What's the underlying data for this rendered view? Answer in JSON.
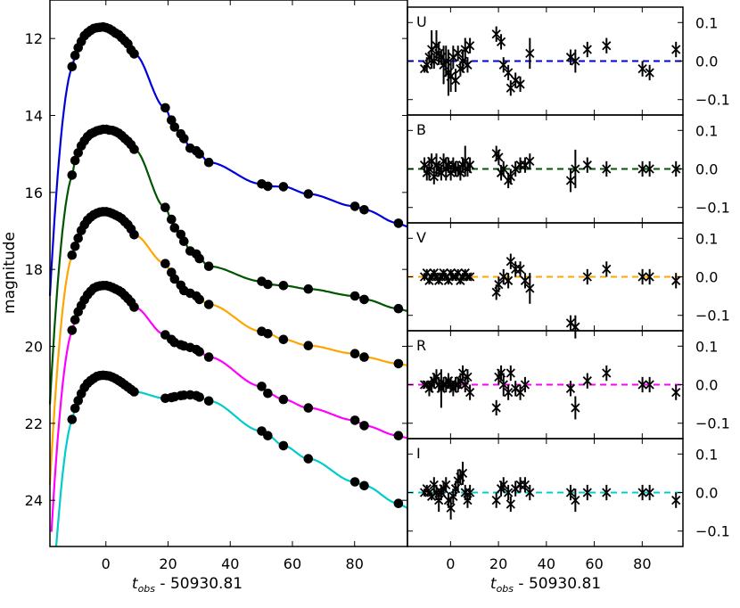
{
  "chart_data": [
    {
      "type": "line",
      "title": "",
      "ylabel": "magnitude",
      "xlabel_main": "t",
      "xlabel_sub": "obs",
      "xlabel_rest": " - 50930.81",
      "xlim": [
        -18,
        97
      ],
      "ylim": [
        25.2,
        11.0
      ],
      "xticks": [
        0,
        20,
        40,
        60,
        80
      ],
      "yticks": [
        12,
        14,
        16,
        18,
        20,
        22,
        24
      ],
      "points_x": [
        -10.9,
        -9.9,
        -8.9,
        -7.9,
        -6.9,
        -5.9,
        -4.9,
        -3.9,
        -2.9,
        -1.9,
        -0.9,
        0.1,
        1.1,
        2.1,
        3.1,
        4.1,
        5.1,
        6.1,
        7.1,
        8.1,
        9.1,
        19.1,
        21.1,
        22.1,
        24.1,
        25.1,
        27.1,
        29.1,
        30.1,
        33.1,
        50.1,
        52.1,
        57.1,
        65.1,
        80.1,
        83.1,
        94.1
      ],
      "series": [
        {
          "name": "U",
          "color": "#0000dd",
          "peak": 11.7,
          "bump": 0.0,
          "mags": [
            12.73,
            12.44,
            12.24,
            12.08,
            11.93,
            11.85,
            11.79,
            11.74,
            11.72,
            11.71,
            11.7,
            11.72,
            11.75,
            11.8,
            11.86,
            11.9,
            11.98,
            12.06,
            12.14,
            12.3,
            12.4,
            13.8,
            14.12,
            14.3,
            14.48,
            14.6,
            14.85,
            14.92,
            15.0,
            15.22,
            15.78,
            15.84,
            15.85,
            16.04,
            16.36,
            16.45,
            16.8
          ]
        },
        {
          "name": "B",
          "color": "#005500",
          "peak": 14.35,
          "bump": 0.0,
          "mags": [
            15.55,
            15.17,
            14.97,
            14.79,
            14.66,
            14.55,
            14.48,
            14.44,
            14.4,
            14.38,
            14.36,
            14.36,
            14.38,
            14.39,
            14.42,
            14.46,
            14.52,
            14.6,
            14.67,
            14.76,
            14.88,
            16.39,
            16.7,
            16.92,
            17.09,
            17.27,
            17.52,
            17.6,
            17.72,
            17.92,
            18.31,
            18.39,
            18.42,
            18.51,
            18.69,
            18.78,
            19.02
          ]
        },
        {
          "name": "V",
          "color": "#ffa500",
          "peak": 16.5,
          "bump": 0.0,
          "mags": [
            17.63,
            17.4,
            17.19,
            16.99,
            16.84,
            16.72,
            16.64,
            16.58,
            16.54,
            16.51,
            16.5,
            16.5,
            16.52,
            16.55,
            16.59,
            16.63,
            16.68,
            16.76,
            16.84,
            16.95,
            17.1,
            17.85,
            18.08,
            18.25,
            18.41,
            18.55,
            18.62,
            18.69,
            18.78,
            18.91,
            19.61,
            19.67,
            19.82,
            19.98,
            20.19,
            20.28,
            20.45
          ]
        },
        {
          "name": "R",
          "color": "#ff00ff",
          "peak": 18.42,
          "bump": 0.2,
          "mags": [
            19.58,
            19.31,
            19.1,
            18.94,
            18.79,
            18.66,
            18.57,
            18.49,
            18.45,
            18.43,
            18.42,
            18.42,
            18.44,
            18.47,
            18.51,
            18.55,
            18.6,
            18.68,
            18.76,
            18.85,
            18.98,
            19.7,
            19.82,
            19.9,
            19.96,
            19.99,
            20.03,
            20.08,
            20.14,
            20.28,
            21.04,
            21.22,
            21.38,
            21.6,
            21.92,
            22.06,
            22.32
          ]
        },
        {
          "name": "I",
          "color": "#00cccc",
          "peak": 20.75,
          "bump": 0.75,
          "mags": [
            21.9,
            21.61,
            21.41,
            21.23,
            21.07,
            20.96,
            20.89,
            20.83,
            20.78,
            20.76,
            20.75,
            20.76,
            20.77,
            20.8,
            20.84,
            20.89,
            20.94,
            21.0,
            21.06,
            21.12,
            21.18,
            21.35,
            21.33,
            21.31,
            21.28,
            21.27,
            21.26,
            21.28,
            21.32,
            21.42,
            22.2,
            22.32,
            22.58,
            22.92,
            23.52,
            23.62,
            24.08
          ]
        }
      ]
    },
    {
      "type": "scatter",
      "title": "",
      "xlabel_main": "t",
      "xlabel_sub": "obs",
      "xlabel_rest": " - 50930.81",
      "xlim": [
        -18,
        97
      ],
      "ylim": [
        -0.14,
        0.14
      ],
      "xticks": [
        0,
        20,
        40,
        60,
        80
      ],
      "yticks": [
        0.1,
        0.0,
        -0.1
      ],
      "ytick_labels": [
        "0.1",
        "0.0",
        "−0.1"
      ],
      "panels": [
        {
          "name": "U",
          "color": "#0000dd",
          "x": [
            -10.9,
            -9.9,
            -8.9,
            -7.9,
            -6.9,
            -5.9,
            -4.9,
            -3.9,
            -2.9,
            -1.9,
            -0.9,
            0.1,
            1.1,
            2.1,
            3.1,
            4.1,
            5.1,
            6.1,
            7.1,
            8.1,
            19.1,
            21.1,
            22.1,
            24.1,
            25.1,
            27.1,
            29.1,
            33.1,
            50.1,
            52.1,
            57.1,
            65.1,
            80.1,
            83.1,
            94.1
          ],
          "res": [
            -0.02,
            -0.01,
            0.01,
            0.03,
            0.0,
            0.04,
            0.02,
            0.01,
            -0.01,
            0.0,
            -0.03,
            -0.04,
            0.01,
            -0.05,
            0.02,
            -0.02,
            0.0,
            0.03,
            -0.01,
            0.04,
            0.07,
            0.05,
            -0.01,
            -0.03,
            -0.07,
            -0.05,
            -0.06,
            0.02,
            0.01,
            0.0,
            0.03,
            0.04,
            -0.02,
            -0.03,
            0.03
          ],
          "err": [
            0.01,
            0.02,
            0.015,
            0.05,
            0.02,
            0.04,
            0.03,
            0.02,
            0.05,
            0.04,
            0.06,
            0.04,
            0.03,
            0.03,
            0.02,
            0.02,
            0.03,
            0.03,
            0.02,
            0.02,
            0.02,
            0.02,
            0.02,
            0.02,
            0.02,
            0.02,
            0.02,
            0.04,
            0.02,
            0.03,
            0.02,
            0.02,
            0.02,
            0.02,
            0.02
          ]
        },
        {
          "name": "B",
          "color": "#005500",
          "x": [
            -10.9,
            -9.9,
            -8.9,
            -7.9,
            -6.9,
            -5.9,
            -4.9,
            -3.9,
            -2.9,
            -1.9,
            -0.9,
            0.1,
            1.1,
            2.1,
            3.1,
            4.1,
            5.1,
            6.1,
            7.1,
            8.1,
            19.1,
            20.1,
            21.1,
            22.1,
            24.1,
            25.1,
            27.1,
            29.1,
            31.1,
            33.1,
            50.1,
            52.1,
            57.1,
            65.1,
            80.1,
            83.1,
            94.1
          ],
          "res": [
            0.01,
            -0.01,
            0.0,
            0.02,
            -0.02,
            0.01,
            0.0,
            -0.01,
            0.02,
            0.0,
            0.01,
            -0.01,
            0.01,
            0.0,
            0.0,
            -0.01,
            0.01,
            0.02,
            0.0,
            0.01,
            0.04,
            0.03,
            -0.01,
            0.0,
            -0.03,
            -0.02,
            0.0,
            0.01,
            0.01,
            0.02,
            -0.03,
            0.0,
            0.01,
            0.0,
            0.0,
            0.0,
            0.0
          ],
          "err": [
            0.02,
            0.02,
            0.03,
            0.02,
            0.02,
            0.03,
            0.02,
            0.02,
            0.02,
            0.03,
            0.02,
            0.02,
            0.02,
            0.02,
            0.02,
            0.02,
            0.02,
            0.04,
            0.02,
            0.02,
            0.02,
            0.02,
            0.02,
            0.02,
            0.02,
            0.02,
            0.02,
            0.02,
            0.02,
            0.02,
            0.03,
            0.05,
            0.02,
            0.02,
            0.02,
            0.02,
            0.02
          ]
        },
        {
          "name": "V",
          "color": "#ffa500",
          "x": [
            -10.9,
            -9.9,
            -8.9,
            -7.9,
            -6.9,
            -5.9,
            -4.9,
            -3.9,
            -2.9,
            -1.9,
            -0.9,
            0.1,
            1.1,
            2.1,
            3.1,
            4.1,
            5.1,
            6.1,
            7.1,
            8.1,
            19.1,
            20.1,
            22.1,
            24.1,
            25.1,
            27.1,
            29.1,
            31.1,
            33.1,
            50.1,
            52.1,
            57.1,
            65.1,
            80.1,
            83.1,
            94.1
          ],
          "res": [
            0.0,
            0.01,
            -0.01,
            0.0,
            0.01,
            0.0,
            -0.01,
            0.0,
            0.01,
            0.0,
            -0.01,
            0.01,
            0.0,
            0.0,
            0.01,
            -0.01,
            0.0,
            0.01,
            0.0,
            0.0,
            -0.04,
            -0.02,
            0.0,
            -0.01,
            0.04,
            0.02,
            0.02,
            -0.01,
            -0.03,
            -0.12,
            -0.13,
            0.0,
            0.02,
            0.0,
            0.0,
            -0.01
          ],
          "err": [
            0.01,
            0.01,
            0.01,
            0.01,
            0.01,
            0.01,
            0.01,
            0.01,
            0.01,
            0.01,
            0.01,
            0.01,
            0.01,
            0.01,
            0.01,
            0.01,
            0.01,
            0.01,
            0.01,
            0.01,
            0.02,
            0.02,
            0.02,
            0.02,
            0.02,
            0.02,
            0.02,
            0.02,
            0.04,
            0.02,
            0.03,
            0.02,
            0.02,
            0.02,
            0.02,
            0.02
          ]
        },
        {
          "name": "R",
          "color": "#ff00ff",
          "x": [
            -10.9,
            -9.9,
            -8.9,
            -7.9,
            -6.9,
            -5.9,
            -4.9,
            -3.9,
            -2.9,
            -1.9,
            -0.9,
            0.1,
            1.1,
            2.1,
            3.1,
            4.1,
            5.1,
            6.1,
            7.1,
            8.1,
            19.1,
            20.1,
            21.1,
            22.1,
            24.1,
            25.1,
            27.1,
            29.1,
            31.1,
            50.1,
            52.1,
            57.1,
            65.1,
            80.1,
            83.1,
            94.1
          ],
          "res": [
            0.0,
            0.0,
            -0.01,
            0.0,
            0.01,
            0.02,
            0.0,
            -0.01,
            0.0,
            0.0,
            0.01,
            0.0,
            -0.01,
            0.0,
            0.0,
            0.01,
            0.03,
            0.0,
            0.02,
            -0.02,
            -0.06,
            0.02,
            0.03,
            0.0,
            -0.02,
            0.03,
            -0.01,
            -0.02,
            0.0,
            -0.01,
            -0.06,
            0.01,
            0.03,
            0.0,
            0.0,
            -0.02
          ],
          "err": [
            0.01,
            0.01,
            0.02,
            0.02,
            0.02,
            0.02,
            0.02,
            0.05,
            0.02,
            0.02,
            0.02,
            0.02,
            0.02,
            0.02,
            0.02,
            0.02,
            0.02,
            0.02,
            0.02,
            0.02,
            0.02,
            0.02,
            0.02,
            0.03,
            0.02,
            0.02,
            0.02,
            0.02,
            0.02,
            0.02,
            0.03,
            0.02,
            0.02,
            0.02,
            0.02,
            0.02
          ]
        },
        {
          "name": "I",
          "color": "#00cccc",
          "x": [
            -10.9,
            -9.9,
            -8.9,
            -7.9,
            -6.9,
            -5.9,
            -4.9,
            -3.9,
            -2.9,
            -1.9,
            -0.9,
            0.1,
            1.1,
            2.1,
            3.1,
            4.1,
            5.1,
            6.1,
            7.1,
            8.1,
            19.1,
            21.1,
            22.1,
            24.1,
            25.1,
            27.1,
            29.1,
            31.1,
            33.1,
            50.1,
            52.1,
            57.1,
            65.1,
            80.1,
            83.1,
            94.1
          ],
          "res": [
            0.0,
            0.01,
            0.0,
            -0.01,
            0.02,
            0.0,
            -0.02,
            0.0,
            0.01,
            0.02,
            -0.02,
            -0.04,
            -0.01,
            0.01,
            0.03,
            0.04,
            0.05,
            0.0,
            -0.02,
            0.0,
            -0.02,
            0.01,
            0.02,
            0.0,
            -0.03,
            0.01,
            0.02,
            0.02,
            0.0,
            0.0,
            -0.02,
            0.0,
            0.0,
            0.0,
            0.0,
            -0.02
          ],
          "err": [
            0.01,
            0.01,
            0.01,
            0.01,
            0.02,
            0.02,
            0.03,
            0.02,
            0.02,
            0.02,
            0.02,
            0.03,
            0.02,
            0.02,
            0.03,
            0.02,
            0.03,
            0.02,
            0.02,
            0.02,
            0.02,
            0.02,
            0.02,
            0.02,
            0.02,
            0.02,
            0.02,
            0.02,
            0.02,
            0.02,
            0.03,
            0.02,
            0.02,
            0.02,
            0.02,
            0.02
          ]
        }
      ]
    }
  ]
}
